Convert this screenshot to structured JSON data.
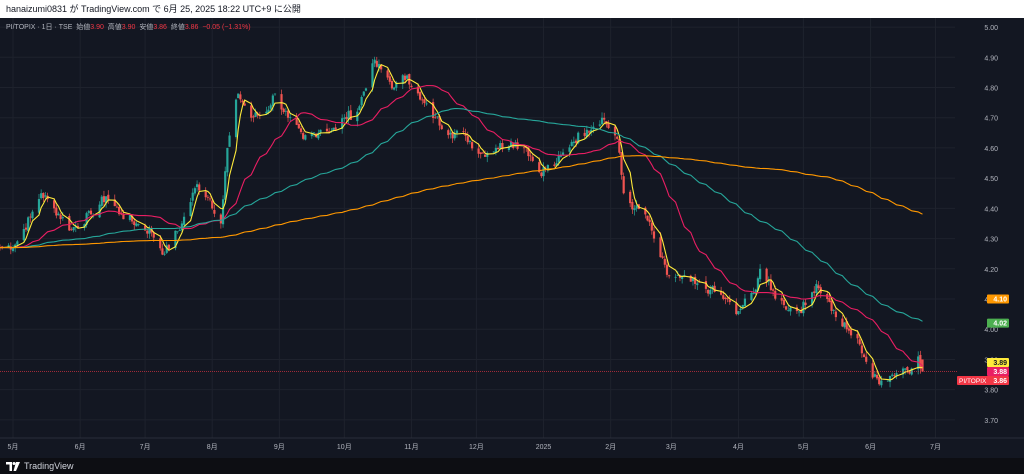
{
  "header": {
    "publish_line": "hanaizumi0831 が TradingView.com で 6月 25, 2025 18:22 UTC+9 に公開"
  },
  "legend": {
    "symbol": "PI/TOPIX · 1日 · TSE",
    "open_label": "始値",
    "open_value": "3.90",
    "high_label": "高値",
    "high_value": "3.90",
    "low_label": "安値",
    "low_value": "3.86",
    "close_label": "終値",
    "close_value": "3.86",
    "change_value": "−0.05 (−1.31%)"
  },
  "footer": {
    "logo_text": "TradingView"
  },
  "chart_data": {
    "type": "candlestick",
    "symbol": "PI/TOPIX",
    "interval": "1日",
    "exchange": "TSE",
    "y_ticks": [
      5.0,
      4.9,
      4.8,
      4.7,
      4.6,
      4.5,
      4.4,
      4.3,
      4.2,
      4.1,
      4.0,
      3.9,
      3.8,
      3.7
    ],
    "y_tick_labels": [
      "5.00",
      "4.90",
      "4.80",
      "4.70",
      "4.60",
      "4.50",
      "4.40",
      "4.30",
      "4.20",
      "4.10",
      "4.00",
      "3.90",
      "3.80",
      "3.70"
    ],
    "ylim": [
      3.64,
      5.03
    ],
    "x_range": [
      "2024-04-25",
      "2025-07-10"
    ],
    "x_ticks": [
      {
        "date": "2024-05-01",
        "label": "5月"
      },
      {
        "date": "2024-06-01",
        "label": "6月"
      },
      {
        "date": "2024-07-01",
        "label": "7月"
      },
      {
        "date": "2024-08-01",
        "label": "8月"
      },
      {
        "date": "2024-09-01",
        "label": "9月"
      },
      {
        "date": "2024-10-01",
        "label": "10月"
      },
      {
        "date": "2024-11-01",
        "label": "11月"
      },
      {
        "date": "2024-12-01",
        "label": "12月"
      },
      {
        "date": "2025-01-01",
        "label": "2025"
      },
      {
        "date": "2025-02-01",
        "label": "2月"
      },
      {
        "date": "2025-03-01",
        "label": "3月"
      },
      {
        "date": "2025-04-01",
        "label": "4月"
      },
      {
        "date": "2025-05-01",
        "label": "5月"
      },
      {
        "date": "2025-06-01",
        "label": "6月"
      },
      {
        "date": "2025-07-01",
        "label": "7月"
      }
    ],
    "close_anchors": [
      [
        "2024-04-25",
        4.27
      ],
      [
        "2024-05-02",
        4.28
      ],
      [
        "2024-05-09",
        4.37
      ],
      [
        "2024-05-14",
        4.45
      ],
      [
        "2024-05-20",
        4.4
      ],
      [
        "2024-05-28",
        4.33
      ],
      [
        "2024-06-06",
        4.38
      ],
      [
        "2024-06-13",
        4.44
      ],
      [
        "2024-06-20",
        4.38
      ],
      [
        "2024-06-27",
        4.35
      ],
      [
        "2024-07-04",
        4.32
      ],
      [
        "2024-07-10",
        4.25
      ],
      [
        "2024-07-18",
        4.35
      ],
      [
        "2024-07-25",
        4.48
      ],
      [
        "2024-07-31",
        4.43
      ],
      [
        "2024-08-05",
        4.35
      ],
      [
        "2024-08-08",
        4.6
      ],
      [
        "2024-08-13",
        4.78
      ],
      [
        "2024-08-19",
        4.7
      ],
      [
        "2024-08-26",
        4.72
      ],
      [
        "2024-08-30",
        4.78
      ],
      [
        "2024-09-05",
        4.7
      ],
      [
        "2024-09-12",
        4.63
      ],
      [
        "2024-09-20",
        4.66
      ],
      [
        "2024-09-27",
        4.66
      ],
      [
        "2024-10-01",
        4.7
      ],
      [
        "2024-10-07",
        4.72
      ],
      [
        "2024-10-14",
        4.88
      ],
      [
        "2024-10-18",
        4.86
      ],
      [
        "2024-10-24",
        4.8
      ],
      [
        "2024-10-30",
        4.84
      ],
      [
        "2024-11-05",
        4.76
      ],
      [
        "2024-11-12",
        4.7
      ],
      [
        "2024-11-19",
        4.65
      ],
      [
        "2024-11-26",
        4.64
      ],
      [
        "2024-12-03",
        4.58
      ],
      [
        "2024-12-10",
        4.6
      ],
      [
        "2024-12-17",
        4.62
      ],
      [
        "2024-12-24",
        4.6
      ],
      [
        "2024-12-30",
        4.52
      ],
      [
        "2025-01-07",
        4.55
      ],
      [
        "2025-01-14",
        4.62
      ],
      [
        "2025-01-21",
        4.66
      ],
      [
        "2025-01-28",
        4.7
      ],
      [
        "2025-02-04",
        4.63
      ],
      [
        "2025-02-07",
        4.45
      ],
      [
        "2025-02-12",
        4.4
      ],
      [
        "2025-02-17",
        4.38
      ],
      [
        "2025-02-21",
        4.3
      ],
      [
        "2025-02-27",
        4.18
      ],
      [
        "2025-03-05",
        4.17
      ],
      [
        "2025-03-12",
        4.15
      ],
      [
        "2025-03-19",
        4.13
      ],
      [
        "2025-03-26",
        4.1
      ],
      [
        "2025-03-31",
        4.05
      ],
      [
        "2025-04-03",
        4.08
      ],
      [
        "2025-04-08",
        4.12
      ],
      [
        "2025-04-11",
        4.2
      ],
      [
        "2025-04-16",
        4.13
      ],
      [
        "2025-04-22",
        4.08
      ],
      [
        "2025-04-28",
        4.06
      ],
      [
        "2025-05-02",
        4.08
      ],
      [
        "2025-05-07",
        4.15
      ],
      [
        "2025-05-12",
        4.1
      ],
      [
        "2025-05-16",
        4.04
      ],
      [
        "2025-05-21",
        4.0
      ],
      [
        "2025-05-27",
        3.95
      ],
      [
        "2025-06-02",
        3.84
      ],
      [
        "2025-06-06",
        3.83
      ],
      [
        "2025-06-11",
        3.85
      ],
      [
        "2025-06-16",
        3.87
      ],
      [
        "2025-06-20",
        3.87
      ],
      [
        "2025-06-23",
        3.91
      ],
      [
        "2025-06-25",
        3.86
      ]
    ],
    "last_candle": {
      "date": "2025-06-25",
      "open": 3.9,
      "high": 3.9,
      "low": 3.86,
      "close": 3.86
    },
    "series": [
      {
        "color": "#ffeb3b",
        "period_days": 5
      },
      {
        "color": "#e91e63",
        "period_days": 25
      },
      {
        "color": "#26a69a",
        "period_days": 75
      },
      {
        "color": "#ff9800",
        "period_days": 200
      }
    ],
    "price_labels": [
      {
        "value": 4.1,
        "text": "4.10",
        "color": "#ff9800"
      },
      {
        "value": 4.02,
        "text": "4.02",
        "color": "#4caf50"
      },
      {
        "value": 3.89,
        "text": "3.89",
        "color": "#ffeb3b"
      },
      {
        "value": 3.88,
        "text": "3.88",
        "color": "#e91e63"
      },
      {
        "value": 3.86,
        "text": "3.86",
        "prefix": "PI/TOPIX",
        "color": "#f23645"
      }
    ],
    "candle_colors": {
      "up": "#26a69a",
      "down": "#ef5350"
    },
    "current_price_line": 3.86,
    "grid": true
  }
}
